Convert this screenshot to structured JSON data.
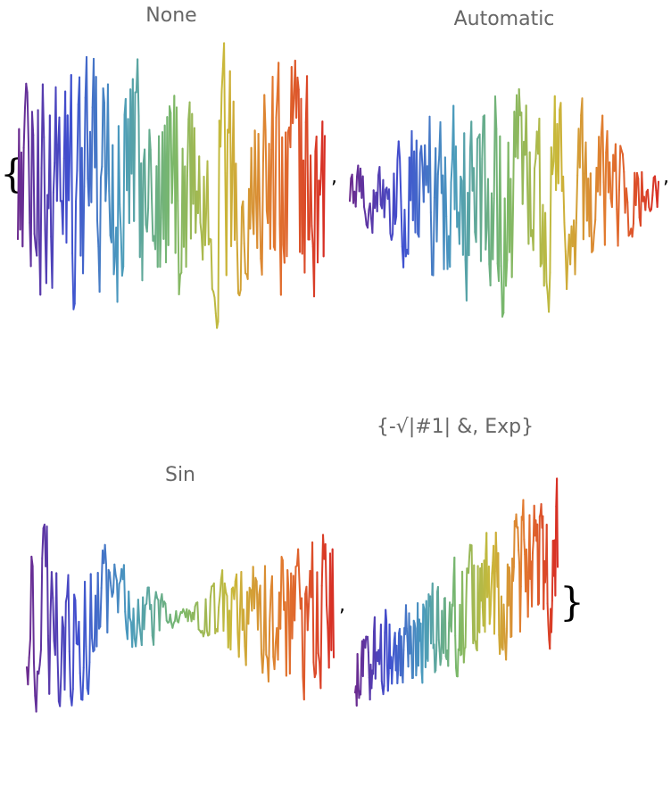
{
  "outer_list": {
    "open": "{",
    "close": "}",
    "separator": ","
  },
  "chart_data": [
    {
      "type": "line",
      "title": "None",
      "scaling": "none",
      "color_gradient": [
        "#6b2a8e",
        "#3f4fd0",
        "#4a9bbd",
        "#7ab86a",
        "#c9b93a",
        "#e2782f",
        "#d72e25"
      ],
      "points": 260,
      "y_range": [
        -1,
        1
      ]
    },
    {
      "type": "line",
      "title": "Automatic",
      "scaling": "automatic",
      "color_gradient": [
        "#6b2a8e",
        "#3f4fd0",
        "#4a9bbd",
        "#7ab86a",
        "#c9b93a",
        "#e2782f",
        "#d72e25"
      ],
      "points": 260,
      "y_range": [
        -1,
        1
      ]
    },
    {
      "type": "line",
      "title": "Sin",
      "scaling": "sin",
      "color_gradient": [
        "#6b2a8e",
        "#3f4fd0",
        "#4a9bbd",
        "#7ab86a",
        "#c9b93a",
        "#e2782f",
        "#d72e25"
      ],
      "points": 260,
      "y_range": [
        -1,
        1
      ]
    },
    {
      "type": "line",
      "title": "{-√|#1| &, Exp}",
      "scaling": "exp",
      "color_gradient": [
        "#6b2a8e",
        "#3f4fd0",
        "#4a9bbd",
        "#7ab86a",
        "#c9b93a",
        "#e2782f",
        "#d72e25"
      ],
      "points": 260,
      "y_range": [
        -1,
        1
      ]
    }
  ]
}
